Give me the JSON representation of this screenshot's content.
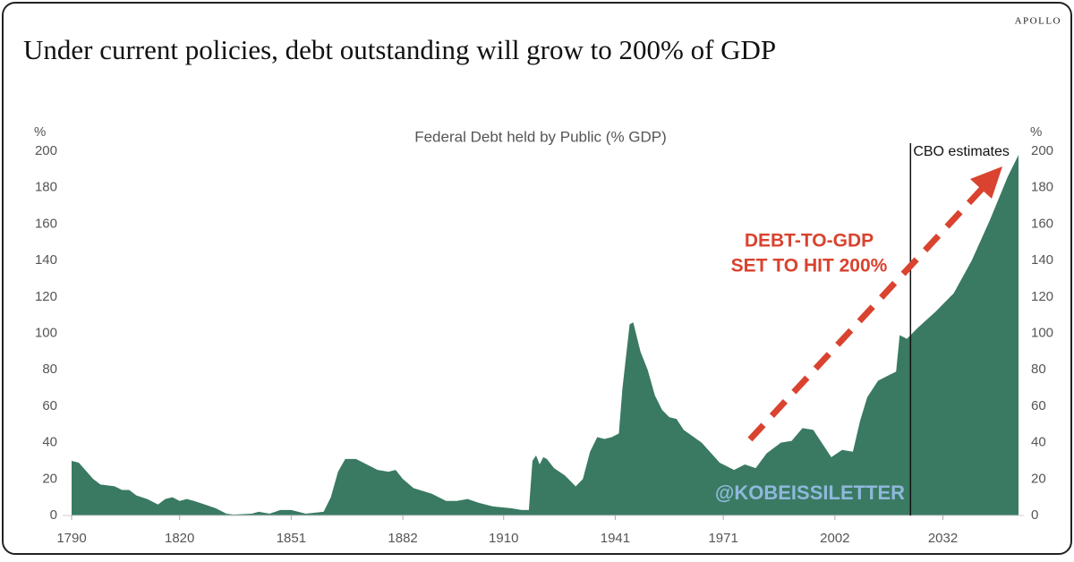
{
  "brand": "APOLLO",
  "chart_data": {
    "type": "area",
    "title": "Under current policies, debt outstanding will grow to 200% of GDP",
    "subtitle": "Federal Debt held by Public (% GDP)",
    "y_label": "%",
    "y2_label": "%",
    "color": "#3a7a62",
    "x": [
      1790,
      1792,
      1796,
      1798,
      1802,
      1804,
      1806,
      1808,
      1811,
      1814,
      1816,
      1818,
      1820,
      1822,
      1824,
      1827,
      1830,
      1833,
      1835,
      1840,
      1842,
      1845,
      1848,
      1851,
      1855,
      1860,
      1862,
      1864,
      1866,
      1869,
      1872,
      1875,
      1878,
      1880,
      1882,
      1885,
      1890,
      1894,
      1897,
      1900,
      1903,
      1907,
      1912,
      1915,
      1917,
      1918,
      1919,
      1920,
      1921,
      1922,
      1924,
      1927,
      1930,
      1932,
      1934,
      1936,
      1938,
      1940,
      1942,
      1943,
      1945,
      1946,
      1948,
      1950,
      1952,
      1954,
      1956,
      1958,
      1960,
      1965,
      1970,
      1974,
      1977,
      1980,
      1983,
      1987,
      1990,
      1993,
      1996,
      1998,
      2001,
      2004,
      2007,
      2009,
      2011,
      2014,
      2017,
      2019,
      2020,
      2022,
      2025,
      2030,
      2033,
      2035,
      2040,
      2045,
      2050,
      2053
    ],
    "values": [
      30,
      29,
      20,
      17,
      16,
      14,
      14,
      11,
      9,
      6,
      9,
      10,
      8,
      9,
      8,
      6,
      4,
      1,
      0.5,
      1,
      2,
      1,
      3,
      3,
      1,
      2,
      10,
      24,
      31,
      31,
      28,
      25,
      24,
      25,
      20,
      15,
      12,
      8,
      8,
      9,
      7,
      5,
      4,
      3,
      3,
      30,
      33,
      28,
      32,
      31,
      26,
      22,
      16,
      20,
      35,
      43,
      42,
      43,
      45,
      70,
      105,
      106,
      90,
      80,
      66,
      58,
      54,
      53,
      47,
      40,
      29,
      25,
      28,
      26,
      34,
      40,
      41,
      48,
      47,
      41,
      32,
      36,
      35,
      52,
      65,
      74,
      77,
      79,
      99,
      97,
      103,
      112,
      118,
      122,
      140,
      162,
      186,
      198
    ],
    "xlim": [
      1790,
      2053
    ],
    "xticks": [
      1790,
      1820,
      1851,
      1882,
      1910,
      1941,
      1971,
      2002,
      2032
    ],
    "ylim": [
      0,
      200
    ],
    "yticks": [
      0,
      20,
      40,
      60,
      80,
      100,
      120,
      140,
      160,
      180,
      200
    ],
    "y2lim": [
      0,
      200
    ],
    "y2ticks": [
      0,
      20,
      40,
      60,
      80,
      100,
      120,
      140,
      160,
      180,
      200
    ],
    "vline": {
      "x": 2023,
      "text": "CBO estimates"
    },
    "annotation": [
      "DEBT-TO-GDP",
      "SET TO HIT 200%"
    ],
    "watermark": "@KOBEISSILETTER"
  }
}
